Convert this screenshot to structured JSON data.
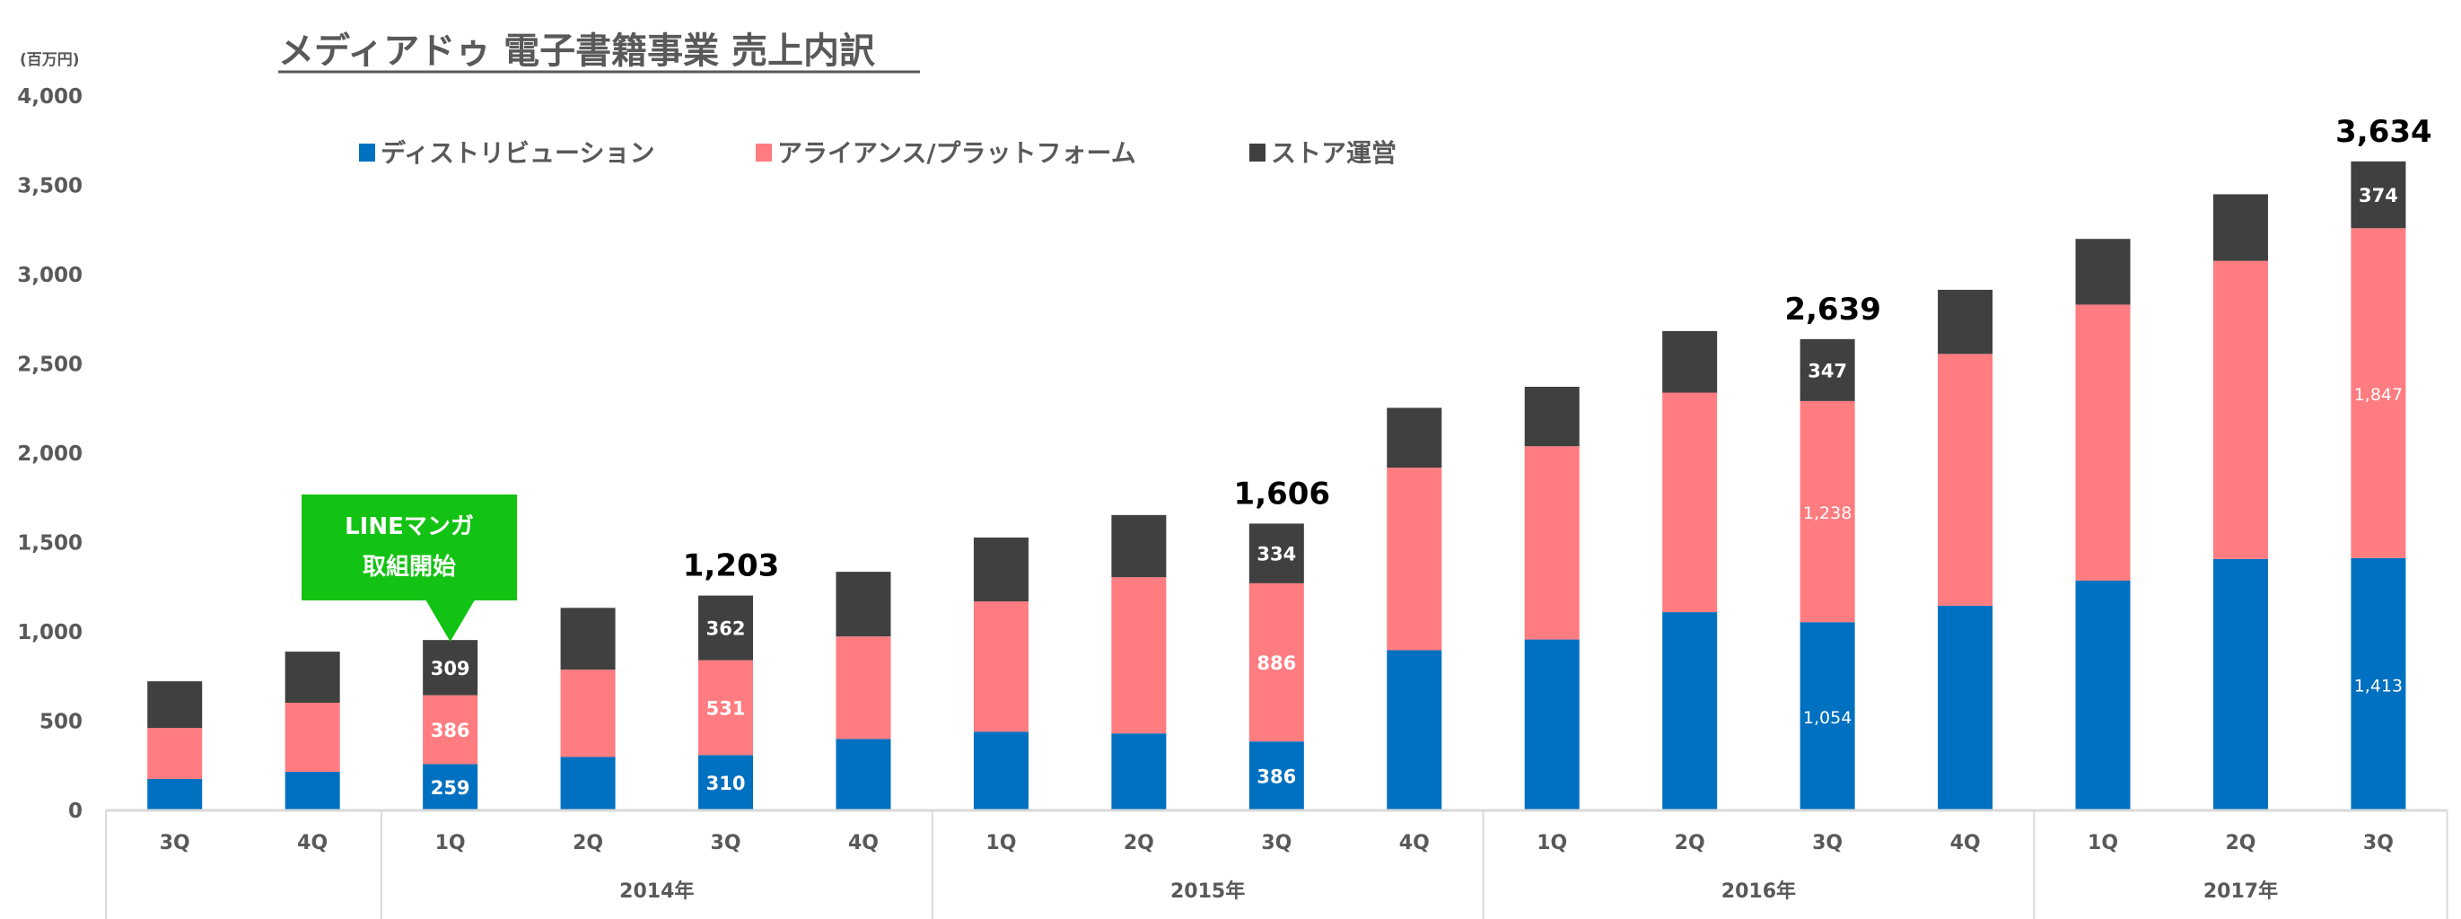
{
  "chart_data": {
    "type": "bar",
    "stacked": true,
    "title": "メディアドゥ 電子書籍事業 売上内訳",
    "ylabel": "(百万円)",
    "xlabel": "",
    "ylim": [
      0,
      4000
    ],
    "yticks": [
      0,
      500,
      1000,
      1500,
      2000,
      2500,
      3000,
      3500,
      4000
    ],
    "ytick_labels": [
      "0",
      "500",
      "1,000",
      "1,500",
      "2,000",
      "2,500",
      "3,000",
      "3,500",
      "4,000"
    ],
    "grid": false,
    "legend_position": "top",
    "categories": [
      "3Q",
      "4Q",
      "1Q",
      "2Q",
      "3Q",
      "4Q",
      "1Q",
      "2Q",
      "3Q",
      "4Q",
      "1Q",
      "2Q",
      "3Q",
      "4Q",
      "1Q",
      "2Q",
      "3Q"
    ],
    "year_groups": [
      {
        "label": "",
        "start": 0,
        "count": 2
      },
      {
        "label": "2014年",
        "start": 2,
        "count": 4
      },
      {
        "label": "2015年",
        "start": 6,
        "count": 4
      },
      {
        "label": "2016年",
        "start": 10,
        "count": 4
      },
      {
        "label": "2017年",
        "start": 14,
        "count": 3
      }
    ],
    "series": [
      {
        "name": "ディストリビューション",
        "color": "#0070C0",
        "values": [
          176,
          216,
          259,
          299,
          310,
          400,
          441,
          431,
          386,
          897,
          957,
          1110,
          1054,
          1146,
          1287,
          1408,
          1413
        ],
        "labels": {
          "2": "259",
          "4": "310",
          "8": "386",
          "12": "1,054",
          "16": "1,413"
        }
      },
      {
        "name": "アライアンス/プラットフォーム",
        "color": "#FF7C80",
        "values": [
          286,
          387,
          386,
          489,
          531,
          574,
          729,
          875,
          886,
          1022,
          1082,
          1229,
          1238,
          1410,
          1545,
          1669,
          1847
        ],
        "labels": {
          "2": "386",
          "4": "531",
          "8": "886",
          "12": "1,238",
          "16": "1,847"
        }
      },
      {
        "name": "ストア運営",
        "color": "#404040",
        "values": [
          261,
          286,
          309,
          346,
          362,
          362,
          358,
          348,
          334,
          335,
          333,
          345,
          347,
          359,
          368,
          373,
          374
        ],
        "labels": {
          "2": "309",
          "4": "362",
          "8": "334",
          "12": "347",
          "16": "374"
        }
      }
    ],
    "total_labels": {
      "4": "1,203",
      "8": "1,606",
      "12": "2,639",
      "16": "3,634"
    },
    "annotations": [
      {
        "text_lines": [
          "LINEマンガ",
          "取組開始"
        ],
        "category_index": 2,
        "color": "#13C313"
      }
    ]
  },
  "legend": {
    "items": [
      {
        "label": "ディストリビューション",
        "color": "#0070C0"
      },
      {
        "label": "アライアンス/プラットフォーム",
        "color": "#FF7C80"
      },
      {
        "label": "ストア運営",
        "color": "#404040"
      }
    ]
  }
}
